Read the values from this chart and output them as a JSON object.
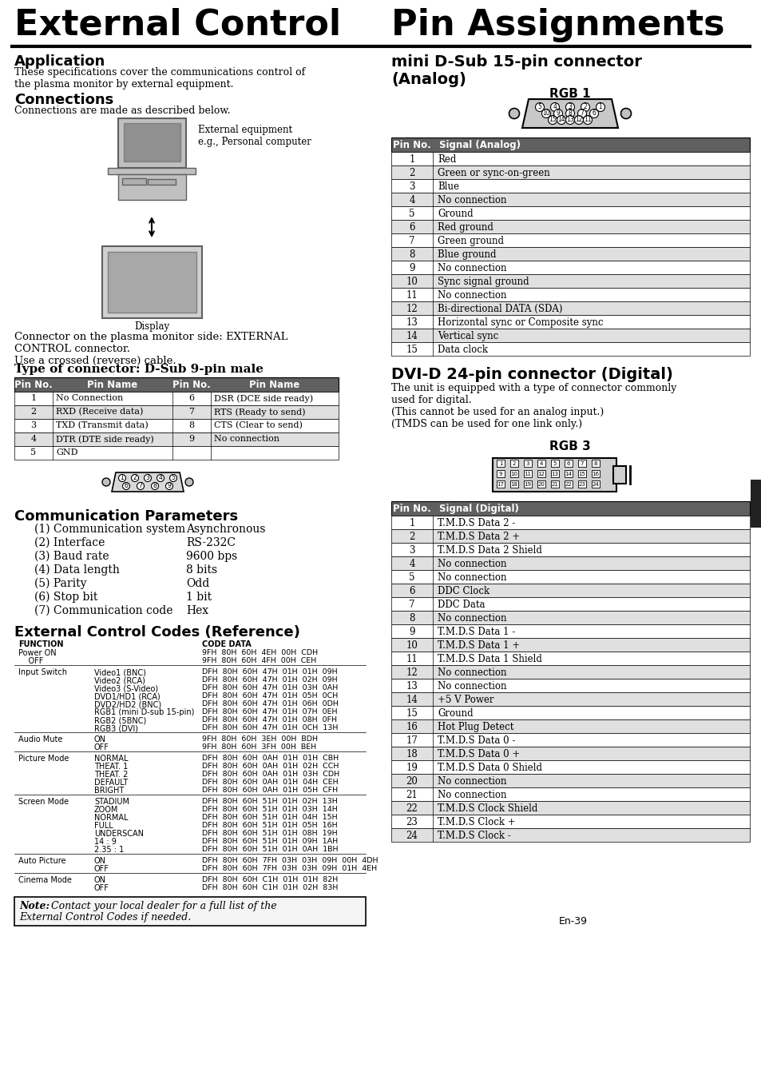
{
  "title_left": "External Control",
  "title_right": "Pin Assignments",
  "bg_color": "#ffffff",
  "header_bg": "#666666",
  "header_fg": "#ffffff",
  "app_section_title": "Application",
  "app_text": "These specifications cover the communications control of\nthe plasma monitor by external equipment.",
  "conn_title": "Connections",
  "conn_text": "Connections are made as described below.",
  "ext_label": "External equipment\ne.g., Personal computer",
  "display_label": "Display",
  "connector_text": "Connector on the plasma monitor side: EXTERNAL\nCONTROL connector.\nUse a crossed (reverse) cable.",
  "dsub_title": "Type of connector: D-Sub 9-pin male",
  "dsub_table_headers": [
    "Pin No.",
    "Pin Name",
    "Pin No.",
    "Pin Name"
  ],
  "dsub_table_rows": [
    [
      "1",
      "No Connection",
      "6",
      "DSR (DCE side ready)"
    ],
    [
      "2",
      "RXD (Receive data)",
      "7",
      "RTS (Ready to send)"
    ],
    [
      "3",
      "TXD (Transmit data)",
      "8",
      "CTS (Clear to send)"
    ],
    [
      "4",
      "DTR (DTE side ready)",
      "9",
      "No connection"
    ],
    [
      "5",
      "GND",
      "",
      ""
    ]
  ],
  "comm_title": "Communication Parameters",
  "comm_items": [
    [
      "(1) Communication system",
      "Asynchronous"
    ],
    [
      "(2) Interface",
      "RS-232C"
    ],
    [
      "(3) Baud rate",
      "9600 bps"
    ],
    [
      "(4) Data length",
      "8 bits"
    ],
    [
      "(5) Parity",
      "Odd"
    ],
    [
      "(6) Stop bit",
      "1 bit"
    ],
    [
      "(7) Communication code",
      "Hex"
    ]
  ],
  "ext_ctrl_title": "External Control Codes (Reference)",
  "ext_ctrl_header": [
    "FUNCTION",
    "CODE DATA"
  ],
  "ext_ctrl_lines": [
    [
      "Power ON",
      "",
      "9FH  80H  60H  4EH  00H  CDH"
    ],
    [
      "    OFF",
      "",
      "9FH  80H  60H  4FH  00H  CEH"
    ],
    [
      "---",
      "",
      ""
    ],
    [
      "Input Switch",
      "Video1 (BNC)",
      "DFH  80H  60H  47H  01H  01H  09H"
    ],
    [
      "",
      "Video2 (RCA)",
      "DFH  80H  60H  47H  01H  02H  09H"
    ],
    [
      "",
      "Video3 (S-Video)",
      "DFH  80H  60H  47H  01H  03H  0AH"
    ],
    [
      "",
      "DVD1/HD1 (RCA)",
      "DFH  80H  60H  47H  01H  05H  0CH"
    ],
    [
      "",
      "DVD2/HD2 (BNC)",
      "DFH  80H  60H  47H  01H  06H  0DH"
    ],
    [
      "",
      "RGB1 (mini D-sub 15-pin)",
      "DFH  80H  60H  47H  01H  07H  0EH"
    ],
    [
      "",
      "RGB2 (5BNC)",
      "DFH  80H  60H  47H  01H  08H  0FH"
    ],
    [
      "",
      "RGB3 (DVI)",
      "DFH  80H  60H  47H  01H  0CH  13H"
    ],
    [
      "---",
      "",
      ""
    ],
    [
      "Audio Mute",
      "ON",
      "9FH  80H  60H  3EH  00H  BDH"
    ],
    [
      "",
      "OFF",
      "9FH  80H  60H  3FH  00H  BEH"
    ],
    [
      "---",
      "",
      ""
    ],
    [
      "Picture Mode",
      "NORMAL",
      "DFH  80H  60H  0AH  01H  01H  CBH"
    ],
    [
      "",
      "THEAT. 1",
      "DFH  80H  60H  0AH  01H  02H  CCH"
    ],
    [
      "",
      "THEAT. 2",
      "DFH  80H  60H  0AH  01H  03H  CDH"
    ],
    [
      "",
      "DEFAULT",
      "DFH  80H  60H  0AH  01H  04H  CEH"
    ],
    [
      "",
      "BRIGHT",
      "DFH  80H  60H  0AH  01H  05H  CFH"
    ],
    [
      "---",
      "",
      ""
    ],
    [
      "Screen Mode",
      "STADIUM",
      "DFH  80H  60H  51H  01H  02H  13H"
    ],
    [
      "",
      "ZOOM",
      "DFH  80H  60H  51H  01H  03H  14H"
    ],
    [
      "",
      "NORMAL",
      "DFH  80H  60H  51H  01H  04H  15H"
    ],
    [
      "",
      "FULL",
      "DFH  80H  60H  51H  01H  05H  16H"
    ],
    [
      "",
      "UNDERSCAN",
      "DFH  80H  60H  51H  01H  08H  19H"
    ],
    [
      "",
      "14 : 9",
      "DFH  80H  60H  51H  01H  09H  1AH"
    ],
    [
      "",
      "2.35 : 1",
      "DFH  80H  60H  51H  01H  0AH  1BH"
    ],
    [
      "---",
      "",
      ""
    ],
    [
      "Auto Picture",
      "ON",
      "DFH  80H  60H  7FH  03H  03H  09H  00H  4DH"
    ],
    [
      "",
      "OFF",
      "DFH  80H  60H  7FH  03H  03H  09H  01H  4EH"
    ],
    [
      "---",
      "",
      ""
    ],
    [
      "Cinema Mode",
      "ON",
      "DFH  80H  60H  C1H  01H  01H  82H"
    ],
    [
      "",
      "OFF",
      "DFH  80H  60H  C1H  01H  02H  83H"
    ]
  ],
  "note_text_bold": "Note:",
  "note_text_rest": "  Contact your local dealer for a full list of the\nExternal Control Codes if needed.",
  "page_num": "En-39",
  "mini_dsub_title": "mini D-Sub 15-pin connector\n(Analog)",
  "rgb1_label": "RGB 1",
  "rgb1_table_headers": [
    "Pin No.",
    "Signal (Analog)"
  ],
  "rgb1_table_rows": [
    [
      "1",
      "Red"
    ],
    [
      "2",
      "Green or sync-on-green"
    ],
    [
      "3",
      "Blue"
    ],
    [
      "4",
      "No connection"
    ],
    [
      "5",
      "Ground"
    ],
    [
      "6",
      "Red ground"
    ],
    [
      "7",
      "Green ground"
    ],
    [
      "8",
      "Blue ground"
    ],
    [
      "9",
      "No connection"
    ],
    [
      "10",
      "Sync signal ground"
    ],
    [
      "11",
      "No connection"
    ],
    [
      "12",
      "Bi-directional DATA (SDA)"
    ],
    [
      "13",
      "Horizontal sync or Composite sync"
    ],
    [
      "14",
      "Vertical sync"
    ],
    [
      "15",
      "Data clock"
    ]
  ],
  "dvi_title": "DVI-D 24-pin connector (Digital)",
  "dvi_text": "The unit is equipped with a type of connector commonly\nused for digital.\n(This cannot be used for an analog input.)\n(TMDS can be used for one link only.)",
  "rgb3_label": "RGB 3",
  "rgb3_table_headers": [
    "Pin No.",
    "Signal (Digital)"
  ],
  "rgb3_table_rows": [
    [
      "1",
      "T.M.D.S Data 2 -"
    ],
    [
      "2",
      "T.M.D.S Data 2 +"
    ],
    [
      "3",
      "T.M.D.S Data 2 Shield"
    ],
    [
      "4",
      "No connection"
    ],
    [
      "5",
      "No connection"
    ],
    [
      "6",
      "DDC Clock"
    ],
    [
      "7",
      "DDC Data"
    ],
    [
      "8",
      "No connection"
    ],
    [
      "9",
      "T.M.D.S Data 1 -"
    ],
    [
      "10",
      "T.M.D.S Data 1 +"
    ],
    [
      "11",
      "T.M.D.S Data 1 Shield"
    ],
    [
      "12",
      "No connection"
    ],
    [
      "13",
      "No connection"
    ],
    [
      "14",
      "+5 V Power"
    ],
    [
      "15",
      "Ground"
    ],
    [
      "16",
      "Hot Plug Detect"
    ],
    [
      "17",
      "T.M.D.S Data 0 -"
    ],
    [
      "18",
      "T.M.D.S Data 0 +"
    ],
    [
      "19",
      "T.M.D.S Data 0 Shield"
    ],
    [
      "20",
      "No connection"
    ],
    [
      "21",
      "No connection"
    ],
    [
      "22",
      "T.M.D.S Clock Shield"
    ],
    [
      "23",
      "T.M.D.S Clock +"
    ],
    [
      "24",
      "T.M.D.S Clock -"
    ]
  ]
}
